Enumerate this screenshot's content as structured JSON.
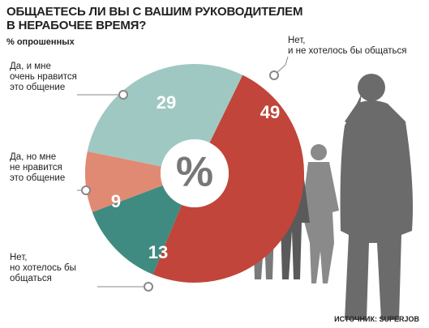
{
  "chart_data": {
    "type": "pie",
    "title": "ОБЩАЕТЕСЬ ЛИ ВЫ С ВАШИМ РУКОВОДИТЕЛЕМ\nВ НЕРАБОЧЕЕ ВРЕМЯ?",
    "subtitle": "% опрошенных",
    "center_label": "%",
    "source": "ИСТОЧНИК: SUPERJOB",
    "categories": [
      "Нет,\nи не хотелось бы общаться",
      "Нет,\nно хотелось бы\nобщаться",
      "Да, но мне\nне нравится\nэто общение",
      "Да, и мне\nочень нравится\nэто общение"
    ],
    "values": [
      49,
      13,
      9,
      29
    ],
    "colors": [
      "#c1453a",
      "#3f8b81",
      "#e08a73",
      "#a0c8c3"
    ]
  }
}
